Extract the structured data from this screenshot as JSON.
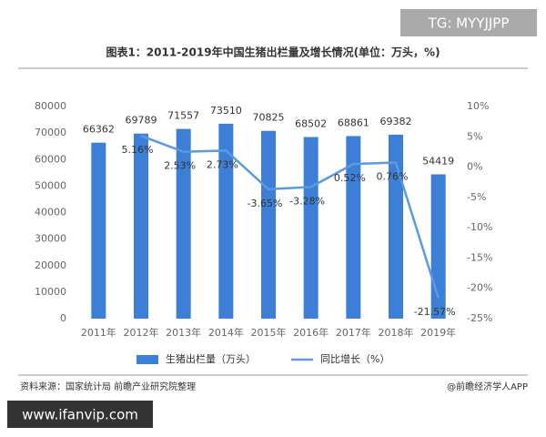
{
  "watermark_top": "TG: MYYJJPP",
  "watermark_bottom": "www.ifanvip.com",
  "chart_data": {
    "type": "bar",
    "title": "图表1：2011-2019年中国生猪出栏量及增长情况(单位：万头，%)",
    "categories": [
      "2011年",
      "2012年",
      "2013年",
      "2014年",
      "2015年",
      "2016年",
      "2017年",
      "2018年",
      "2019年"
    ],
    "series": [
      {
        "name": "生猪出栏量（万头）",
        "type": "bar",
        "color": "#3d7fd6",
        "values": [
          66362,
          69789,
          71557,
          73510,
          70825,
          68502,
          68861,
          69382,
          54419
        ]
      },
      {
        "name": "同比增长（%）",
        "type": "line",
        "axis": "y2",
        "color": "#5a9ae0",
        "values": [
          null,
          5.16,
          2.53,
          2.73,
          -3.65,
          -3.28,
          0.52,
          0.76,
          -21.57
        ],
        "value_labels": [
          null,
          "5.16%",
          "2.53%",
          "2.73%",
          "-3.65%",
          "-3.28%",
          "0.52%",
          "0.76%",
          "-21.57%"
        ]
      }
    ],
    "ylim": [
      0,
      80000
    ],
    "yticks": [
      0,
      10000,
      20000,
      30000,
      40000,
      50000,
      60000,
      70000,
      80000
    ],
    "y2lim": [
      -25,
      10
    ],
    "y2ticks": [
      {
        "value": -25,
        "label": "-25%"
      },
      {
        "value": -20,
        "label": "-20%"
      },
      {
        "value": -15,
        "label": "-15%"
      },
      {
        "value": -10,
        "label": "-10%"
      },
      {
        "value": -5,
        "label": "-5%"
      },
      {
        "value": 0,
        "label": "0%"
      },
      {
        "value": 5,
        "label": "5%"
      },
      {
        "value": 10,
        "label": "10%"
      }
    ],
    "grid": false,
    "source": "资料来源：国家统计局 前瞻产业研究院整理",
    "credit": "@前瞻经济学人APP"
  }
}
